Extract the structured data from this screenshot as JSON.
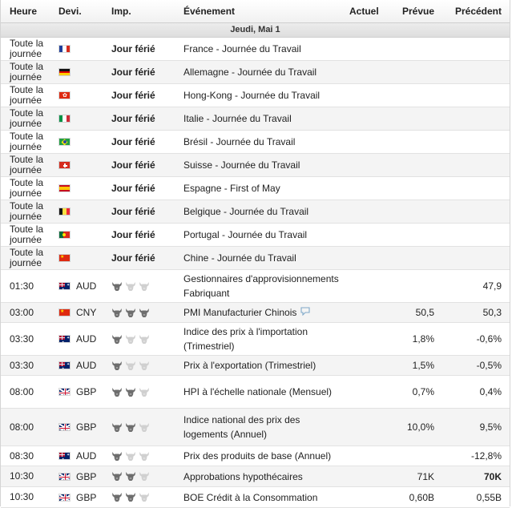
{
  "columns": {
    "time": "Heure",
    "currency": "Devi.",
    "importance": "Imp.",
    "event": "Événement",
    "actual": "Actuel",
    "forecast": "Prévue",
    "previous": "Précédent"
  },
  "day_label": "Jeudi, Mai 1",
  "colors": {
    "bull_active": "#6e6e6e",
    "bull_inactive": "#d0d0d0",
    "header_bg": "#f1f1f1",
    "alt_row": "#f4f4f4",
    "chat_icon": "#7fa9c9"
  },
  "holidays": [
    {
      "time": "Toute la journée",
      "flag": "fr-flag-icon",
      "label": "Jour férié",
      "event": "France - Journée du Travail"
    },
    {
      "time": "Toute la journée",
      "flag": "de-flag-icon",
      "label": "Jour férié",
      "event": "Allemagne - Journée du Travail"
    },
    {
      "time": "Toute la journée",
      "flag": "hk-flag-icon",
      "label": "Jour férié",
      "event": "Hong-Kong - Journée du Travail"
    },
    {
      "time": "Toute la journée",
      "flag": "it-flag-icon",
      "label": "Jour férié",
      "event": "Italie - Journée du Travail"
    },
    {
      "time": "Toute la journée",
      "flag": "br-flag-icon",
      "label": "Jour férié",
      "event": "Brésil - Journée du Travail"
    },
    {
      "time": "Toute la journée",
      "flag": "ch-flag-icon",
      "label": "Jour férié",
      "event": "Suisse - Journée du Travail"
    },
    {
      "time": "Toute la journée",
      "flag": "es-flag-icon",
      "label": "Jour férié",
      "event": "Espagne - First of May"
    },
    {
      "time": "Toute la journée",
      "flag": "be-flag-icon",
      "label": "Jour férié",
      "event": "Belgique - Journée du Travail"
    },
    {
      "time": "Toute la journée",
      "flag": "pt-flag-icon",
      "label": "Jour férié",
      "event": "Portugal - Journée du Travail"
    },
    {
      "time": "Toute la journée",
      "flag": "cn-flag-icon",
      "label": "Jour férié",
      "event": "Chine - Journée du Travail"
    }
  ],
  "events": [
    {
      "time": "01:30",
      "flag": "au-flag-icon",
      "currency": "AUD",
      "importance": 1,
      "event": "Gestionnaires d'approvisionnements Fabriquant",
      "actual": "",
      "forecast": "",
      "previous": "47,9"
    },
    {
      "time": "03:00",
      "flag": "cn-flag-icon",
      "currency": "CNY",
      "importance": 3,
      "event": "PMI Manufacturier Chinois",
      "has_comment": true,
      "actual": "",
      "forecast": "50,5",
      "previous": "50,3"
    },
    {
      "time": "03:30",
      "flag": "au-flag-icon",
      "currency": "AUD",
      "importance": 1,
      "event": "Indice des prix à l'importation (Trimestriel)",
      "actual": "",
      "forecast": "1,8%",
      "previous": "-0,6%"
    },
    {
      "time": "03:30",
      "flag": "au-flag-icon",
      "currency": "AUD",
      "importance": 1,
      "event": "Prix à l'exportation (Trimestriel)",
      "actual": "",
      "forecast": "1,5%",
      "previous": "-0,5%"
    },
    {
      "time": "08:00",
      "flag": "gb-flag-icon",
      "currency": "GBP",
      "importance": 2,
      "event": "HPI à l'échelle nationale (Mensuel)",
      "actual": "",
      "forecast": "0,7%",
      "previous": "0,4%"
    },
    {
      "time": "08:00",
      "flag": "gb-flag-icon",
      "currency": "GBP",
      "importance": 2,
      "event": "Indice national des prix des logements (Annuel)",
      "actual": "",
      "forecast": "10,0%",
      "previous": "9,5%"
    },
    {
      "time": "08:30",
      "flag": "au-flag-icon",
      "currency": "AUD",
      "importance": 1,
      "event": "Prix des produits de base (Annuel)",
      "actual": "",
      "forecast": "",
      "previous": "-12,8%"
    },
    {
      "time": "10:30",
      "flag": "gb-flag-icon",
      "currency": "GBP",
      "importance": 2,
      "event": "Approbations hypothécaires",
      "actual": "",
      "forecast": "71K",
      "previous": "70K",
      "previous_bold": true
    },
    {
      "time": "10:30",
      "flag": "gb-flag-icon",
      "currency": "GBP",
      "importance": 2,
      "event": "BOE Crédit à la Consommation",
      "actual": "",
      "forecast": "0,60B",
      "previous": "0,55B"
    }
  ]
}
